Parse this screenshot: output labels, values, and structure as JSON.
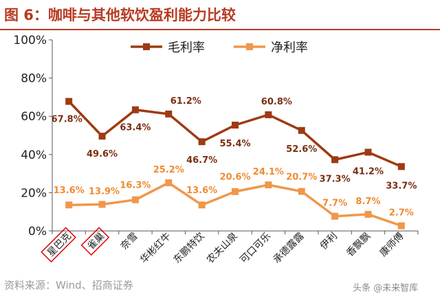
{
  "title": "图 6：咖啡与其他软饮盈利能力比较",
  "source": "资料来源：Wind、招商证券",
  "watermark": "头条 @未来智库",
  "colors": {
    "title": "#b83a22",
    "series_gross": "#9e3a12",
    "series_net": "#f0974a",
    "label_gross": "#7a2e10",
    "label_net": "#f08a30",
    "highlight_box": "#e00000"
  },
  "chart_data": {
    "type": "line",
    "categories": [
      "星巴克",
      "雀巢",
      "奈雪",
      "华彬红牛",
      "东鹏特饮",
      "农夫山泉",
      "可口可乐",
      "承德露露",
      "伊利",
      "香飘飘",
      "康师傅"
    ],
    "highlighted_categories": [
      "星巴克",
      "雀巢"
    ],
    "series": [
      {
        "name": "毛利率",
        "values": [
          67.8,
          49.6,
          63.4,
          61.2,
          46.7,
          55.4,
          60.8,
          52.6,
          37.3,
          41.2,
          33.7
        ],
        "labels": [
          "67.8%",
          "49.6%",
          "63.4%",
          "61.2%",
          "46.7%",
          "55.4%",
          "60.8%",
          "52.6%",
          "37.3%",
          "41.2%",
          "33.7%"
        ],
        "color": "#9e3a12"
      },
      {
        "name": "净利率",
        "values": [
          13.6,
          13.9,
          16.3,
          25.2,
          13.6,
          20.6,
          24.1,
          20.7,
          7.7,
          8.7,
          2.7
        ],
        "labels": [
          "13.6%",
          "13.9%",
          "16.3%",
          "25.2%",
          "13.6%",
          "20.6%",
          "24.1%",
          "20.7%",
          "7.7%",
          "8.7%",
          "2.7%"
        ],
        "color": "#f0974a"
      }
    ],
    "ylim": [
      0,
      100
    ],
    "yticks": [
      "0%",
      "20%",
      "40%",
      "60%",
      "80%",
      "100%"
    ],
    "grid": false,
    "legend": "top-center"
  }
}
